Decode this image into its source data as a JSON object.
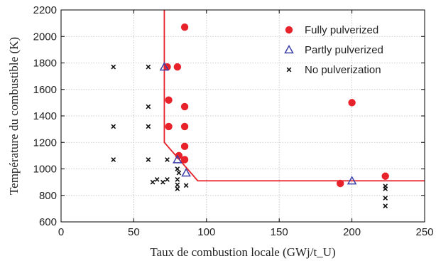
{
  "chart_data": {
    "type": "scatter",
    "xlabel": "Taux de combustion locale (GWj/t_U)",
    "ylabel": "Température du combustible (K)",
    "xlim": [
      0,
      250
    ],
    "ylim": [
      600,
      2200
    ],
    "xticks": [
      0,
      50,
      100,
      150,
      200,
      250
    ],
    "yticks": [
      600,
      800,
      1000,
      1200,
      1400,
      1600,
      1800,
      2000,
      2200
    ],
    "grid": true,
    "legend_position": "top-right",
    "colors": {
      "fully": "#e8222a",
      "partly": "#3b3fa8",
      "none": "#111111",
      "boundary": "#e8222a"
    },
    "series": [
      {
        "name": "Fully pulverized",
        "marker": "circle",
        "points": [
          {
            "x": 73,
            "y": 1770
          },
          {
            "x": 80,
            "y": 1770
          },
          {
            "x": 85,
            "y": 2070
          },
          {
            "x": 74,
            "y": 1520
          },
          {
            "x": 85,
            "y": 1470
          },
          {
            "x": 74,
            "y": 1320
          },
          {
            "x": 85,
            "y": 1320
          },
          {
            "x": 85,
            "y": 1170
          },
          {
            "x": 81,
            "y": 1100
          },
          {
            "x": 85,
            "y": 1070
          },
          {
            "x": 200,
            "y": 1500
          },
          {
            "x": 192,
            "y": 890
          },
          {
            "x": 223,
            "y": 945
          }
        ]
      },
      {
        "name": "Partly pulverized",
        "marker": "triangle",
        "points": [
          {
            "x": 71,
            "y": 1770
          },
          {
            "x": 80,
            "y": 1070
          },
          {
            "x": 86,
            "y": 970
          },
          {
            "x": 200,
            "y": 910
          }
        ]
      },
      {
        "name": "No pulverization",
        "marker": "x",
        "points": [
          {
            "x": 36,
            "y": 1770
          },
          {
            "x": 36,
            "y": 1320
          },
          {
            "x": 36,
            "y": 1070
          },
          {
            "x": 60,
            "y": 1770
          },
          {
            "x": 60,
            "y": 1470
          },
          {
            "x": 60,
            "y": 1320
          },
          {
            "x": 60,
            "y": 1070
          },
          {
            "x": 63,
            "y": 900
          },
          {
            "x": 66,
            "y": 920
          },
          {
            "x": 70,
            "y": 900
          },
          {
            "x": 73,
            "y": 920
          },
          {
            "x": 73,
            "y": 1070
          },
          {
            "x": 80,
            "y": 1000
          },
          {
            "x": 81,
            "y": 970
          },
          {
            "x": 80,
            "y": 920
          },
          {
            "x": 80,
            "y": 880
          },
          {
            "x": 80,
            "y": 850
          },
          {
            "x": 86,
            "y": 875
          },
          {
            "x": 223,
            "y": 870
          },
          {
            "x": 223,
            "y": 850
          },
          {
            "x": 223,
            "y": 780
          },
          {
            "x": 223,
            "y": 720
          }
        ]
      }
    ],
    "boundary_line": [
      {
        "x": 71,
        "y": 2200
      },
      {
        "x": 71,
        "y": 1200
      },
      {
        "x": 94,
        "y": 910
      },
      {
        "x": 250,
        "y": 910
      }
    ]
  }
}
